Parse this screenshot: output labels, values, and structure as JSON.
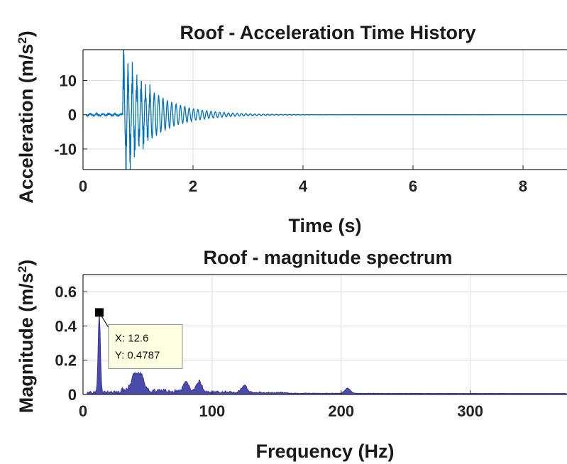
{
  "colors": {
    "time_series": "#0072BD",
    "spectrum": "#2B2B9A",
    "grid": "#dcdcdc",
    "axes": "#262626",
    "datatip_bg": "#FFFFE1",
    "datatip_marker": "#000000"
  },
  "chart_data": [
    {
      "type": "line",
      "title": "Roof - Acceleration Time History",
      "xlabel": "Time (s)",
      "ylabel_main": "Acceleration (m/s",
      "ylabel_sup": "2",
      "ylabel_close": ")",
      "xlim": [
        0,
        8.8
      ],
      "ylim": [
        -16,
        19
      ],
      "xticks": [
        0,
        2,
        4,
        6,
        8
      ],
      "yticks": [
        -10,
        0,
        10
      ],
      "grid": true,
      "signal": {
        "onset_time": 0.72,
        "peak_positive": 19,
        "peak_negative": -16,
        "decay_end_time": 3.8,
        "dominant_frequency_hz": 12.6
      }
    },
    {
      "type": "area",
      "title": "Roof - magnitude spectrum",
      "xlabel": "Frequency (Hz)",
      "ylabel_main": "Magnitude (m/s",
      "ylabel_sup": "2",
      "ylabel_close": ")",
      "xlim": [
        0,
        375
      ],
      "ylim": [
        0,
        0.7
      ],
      "xticks": [
        0,
        100,
        200,
        300
      ],
      "yticks": [
        0,
        0.2,
        0.4,
        0.6
      ],
      "grid": true,
      "peaks": [
        {
          "x": 12.6,
          "y": 0.4787
        },
        {
          "x": 40,
          "y": 0.1
        },
        {
          "x": 45,
          "y": 0.09
        },
        {
          "x": 80,
          "y": 0.06
        },
        {
          "x": 90,
          "y": 0.06
        },
        {
          "x": 125,
          "y": 0.04
        },
        {
          "x": 205,
          "y": 0.03
        }
      ],
      "datatip": {
        "x": 12.6,
        "y": 0.4787,
        "x_label": "X: 12.6",
        "y_label": "Y: 0.4787"
      }
    }
  ]
}
